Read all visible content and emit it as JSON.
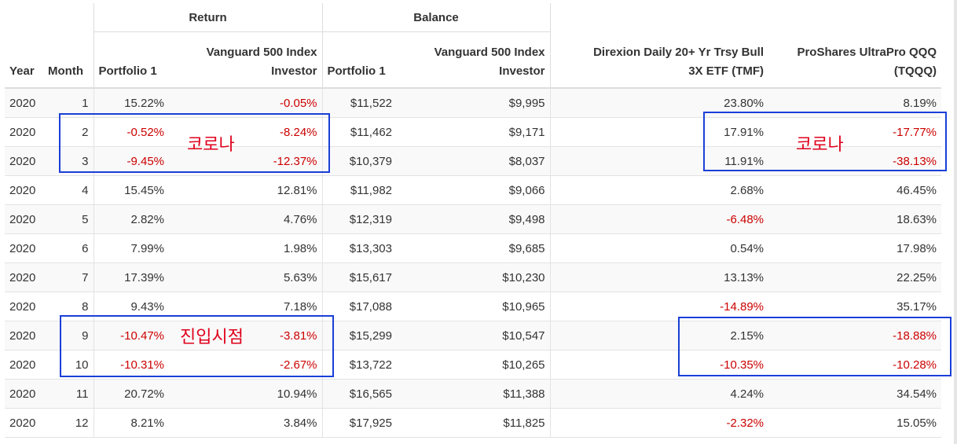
{
  "table": {
    "group_headers": {
      "return": "Return",
      "balance": "Balance"
    },
    "columns": {
      "year": "Year",
      "month": "Month",
      "return_portfolio": "Portfolio 1",
      "return_vanguard_1": "Vanguard 500 Index",
      "return_vanguard_2": "Investor",
      "balance_portfolio": "Portfolio 1",
      "balance_vanguard_1": "Vanguard 500 Index",
      "balance_vanguard_2": "Investor",
      "tmf_1": "Direxion Daily 20+ Yr Trsy Bull",
      "tmf_2": "3X ETF (TMF)",
      "tqqq_1": "ProShares UltraPro QQQ",
      "tqqq_2": "(TQQQ)"
    },
    "rows": [
      {
        "year": "2020",
        "month": "1",
        "ret_p1": "15.22%",
        "ret_v": "-0.05%",
        "bal_p1": "$11,522",
        "bal_v": "$9,995",
        "tmf": "23.80%",
        "tqqq": "8.19%"
      },
      {
        "year": "2020",
        "month": "2",
        "ret_p1": "-0.52%",
        "ret_v": "-8.24%",
        "bal_p1": "$11,462",
        "bal_v": "$9,171",
        "tmf": "17.91%",
        "tqqq": "-17.77%"
      },
      {
        "year": "2020",
        "month": "3",
        "ret_p1": "-9.45%",
        "ret_v": "-12.37%",
        "bal_p1": "$10,379",
        "bal_v": "$8,037",
        "tmf": "11.91%",
        "tqqq": "-38.13%"
      },
      {
        "year": "2020",
        "month": "4",
        "ret_p1": "15.45%",
        "ret_v": "12.81%",
        "bal_p1": "$11,982",
        "bal_v": "$9,066",
        "tmf": "2.68%",
        "tqqq": "46.45%"
      },
      {
        "year": "2020",
        "month": "5",
        "ret_p1": "2.82%",
        "ret_v": "4.76%",
        "bal_p1": "$12,319",
        "bal_v": "$9,498",
        "tmf": "-6.48%",
        "tqqq": "18.63%"
      },
      {
        "year": "2020",
        "month": "6",
        "ret_p1": "7.99%",
        "ret_v": "1.98%",
        "bal_p1": "$13,303",
        "bal_v": "$9,685",
        "tmf": "0.54%",
        "tqqq": "17.98%"
      },
      {
        "year": "2020",
        "month": "7",
        "ret_p1": "17.39%",
        "ret_v": "5.63%",
        "bal_p1": "$15,617",
        "bal_v": "$10,230",
        "tmf": "13.13%",
        "tqqq": "22.25%"
      },
      {
        "year": "2020",
        "month": "8",
        "ret_p1": "9.43%",
        "ret_v": "7.18%",
        "bal_p1": "$17,088",
        "bal_v": "$10,965",
        "tmf": "-14.89%",
        "tqqq": "35.17%"
      },
      {
        "year": "2020",
        "month": "9",
        "ret_p1": "-10.47%",
        "ret_v": "-3.81%",
        "bal_p1": "$15,299",
        "bal_v": "$10,547",
        "tmf": "2.15%",
        "tqqq": "-18.88%"
      },
      {
        "year": "2020",
        "month": "10",
        "ret_p1": "-10.31%",
        "ret_v": "-2.67%",
        "bal_p1": "$13,722",
        "bal_v": "$10,265",
        "tmf": "-10.35%",
        "tqqq": "-10.28%"
      },
      {
        "year": "2020",
        "month": "11",
        "ret_p1": "20.72%",
        "ret_v": "10.94%",
        "bal_p1": "$16,565",
        "bal_v": "$11,388",
        "tmf": "4.24%",
        "tqqq": "34.54%"
      },
      {
        "year": "2020",
        "month": "12",
        "ret_p1": "8.21%",
        "ret_v": "3.84%",
        "bal_p1": "$17,925",
        "bal_v": "$11,825",
        "tmf": "-2.32%",
        "tqqq": "15.05%"
      }
    ]
  },
  "annotations": {
    "corona_left": "코로나",
    "corona_right": "코로나",
    "entry_point": "진입시점"
  },
  "colors": {
    "negative": "#cc0000",
    "box": "#1a3fd8",
    "annotation": "#e0001b"
  }
}
